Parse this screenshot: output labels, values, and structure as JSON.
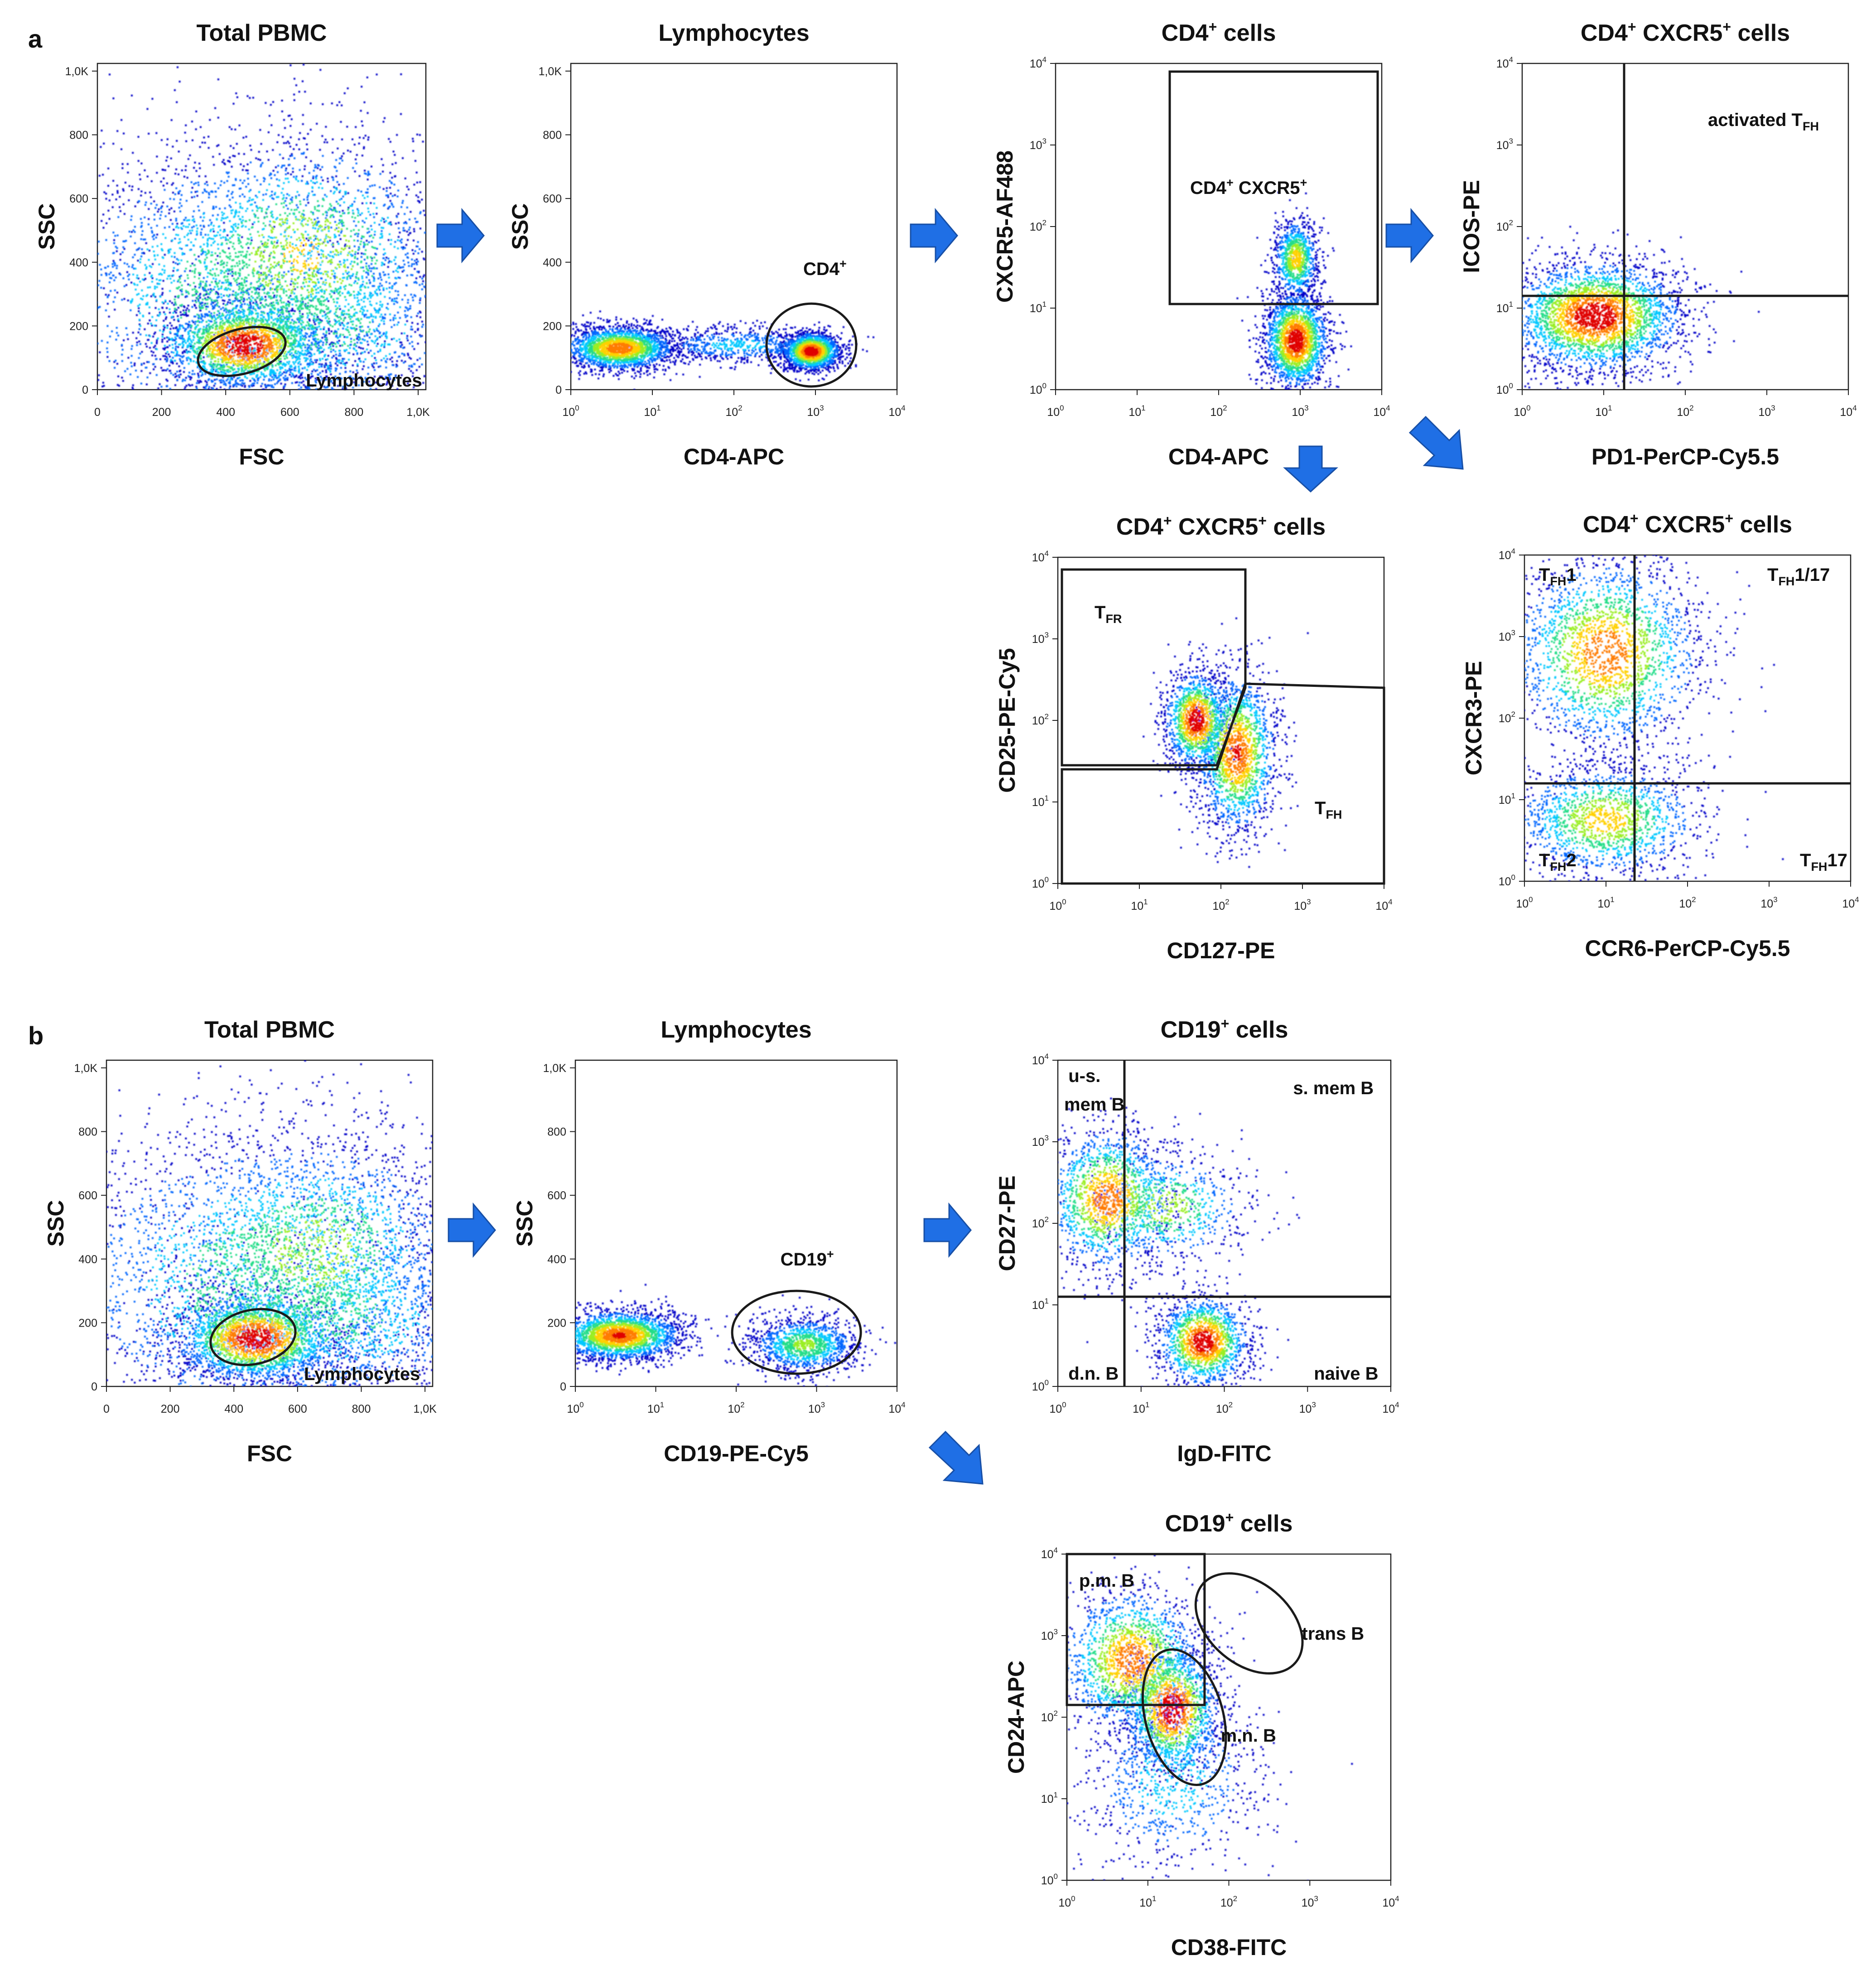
{
  "colors": {
    "arrow": "#1f6fe5",
    "gate": "#1a1a1a",
    "density_scale": [
      "#0000c8",
      "#0066ff",
      "#00c8ff",
      "#22dd88",
      "#99ee22",
      "#ffd000",
      "#ff7b00",
      "#e00000"
    ]
  },
  "panel_labels": {
    "a": "a",
    "b": "b"
  },
  "chart_data": [
    {
      "id": "a1",
      "type": "scatter",
      "title": "Total PBMC",
      "xlabel": "FSC",
      "ylabel": "SSC",
      "scale": "linear",
      "xlim": [
        0,
        1024
      ],
      "ylim": [
        0,
        1024
      ],
      "x_ticks": [
        "0",
        "200",
        "400",
        "600",
        "800",
        "1,0K"
      ],
      "y_ticks": [
        "0",
        "200",
        "400",
        "600",
        "800",
        "1,0K"
      ],
      "populations": [
        {
          "x": 470,
          "y": 300,
          "sx": 350,
          "sy": 260,
          "n": 2600,
          "w": 0.5
        },
        {
          "x": 640,
          "y": 420,
          "sx": 250,
          "sy": 200,
          "n": 1800,
          "w": 0.65
        },
        {
          "x": 460,
          "y": 140,
          "sx": 130,
          "sy": 70,
          "n": 2200,
          "w": 1.0
        },
        {
          "x": 700,
          "y": 200,
          "sx": 280,
          "sy": 150,
          "n": 1200,
          "w": 0.45
        }
      ],
      "gates": [
        {
          "type": "ellipse",
          "cx": 450,
          "cy": 120,
          "rx": 140,
          "ry": 70,
          "angle": 15,
          "label": "Lymphocytes",
          "label_at": [
            650,
            10
          ]
        }
      ]
    },
    {
      "id": "a2",
      "type": "scatter",
      "title": "Lymphocytes",
      "xlabel": "CD4-APC",
      "ylabel": "SSC",
      "scale": "log-x",
      "xlim": [
        0,
        4
      ],
      "ylim": [
        0,
        1024
      ],
      "x_ticks": [
        "10^0",
        "10^1",
        "10^2",
        "10^3",
        "10^4"
      ],
      "y_ticks": [
        "0",
        "200",
        "400",
        "600",
        "800",
        "1,0K"
      ],
      "populations": [
        {
          "x": 0.6,
          "y": 130,
          "sx": 0.35,
          "sy": 35,
          "n": 2200,
          "w": 0.85
        },
        {
          "x": 2.05,
          "y": 140,
          "sx": 0.6,
          "sy": 30,
          "n": 700,
          "w": 0.3
        },
        {
          "x": 2.95,
          "y": 120,
          "sx": 0.18,
          "sy": 30,
          "n": 1700,
          "w": 1.0
        }
      ],
      "gates": [
        {
          "type": "ellipse",
          "cx": 2.95,
          "cy": 140,
          "rx": 0.55,
          "ry": 130,
          "angle": 0,
          "label": "CD4+",
          "label_at": [
            2.85,
            360
          ]
        }
      ]
    },
    {
      "id": "a3",
      "type": "scatter",
      "title": "CD4+ cells",
      "xlabel": "CD4-APC",
      "ylabel": "CXCR5-AF488",
      "scale": "log",
      "xlim": [
        0,
        4
      ],
      "ylim": [
        0,
        4
      ],
      "x_ticks": [
        "10^0",
        "10^1",
        "10^2",
        "10^3",
        "10^4"
      ],
      "y_ticks": [
        "10^0",
        "10^1",
        "10^2",
        "10^3",
        "10^4"
      ],
      "populations": [
        {
          "x": 2.95,
          "y": 0.6,
          "sx": 0.2,
          "sy": 0.3,
          "n": 2000,
          "w": 1.0
        },
        {
          "x": 2.95,
          "y": 1.6,
          "sx": 0.14,
          "sy": 0.25,
          "n": 900,
          "w": 0.7
        }
      ],
      "gates": [
        {
          "type": "rect",
          "x0": 1.4,
          "x1": 3.95,
          "y0": 1.05,
          "y1": 3.9,
          "label": "CD4+ CXCR5+",
          "label_at": [
            1.65,
            2.4
          ]
        }
      ]
    },
    {
      "id": "a4",
      "type": "scatter",
      "title": "CD4+ CXCR5+ cells",
      "xlabel": "PD1-PerCP-Cy5.5",
      "ylabel": "ICOS-PE",
      "scale": "log",
      "xlim": [
        0,
        4
      ],
      "ylim": [
        0,
        4
      ],
      "x_ticks": [
        "10^0",
        "10^1",
        "10^2",
        "10^3",
        "10^4"
      ],
      "y_ticks": [
        "10^0",
        "10^1",
        "10^2",
        "10^3",
        "10^4"
      ],
      "populations": [
        {
          "x": 0.9,
          "y": 0.9,
          "sx": 0.55,
          "sy": 0.35,
          "n": 3000,
          "w": 1.0
        }
      ],
      "gates": [
        {
          "type": "quadrant",
          "x": 1.25,
          "y": 1.15
        }
      ],
      "quadrant_labels": [
        {
          "label": "activated TFH",
          "at": [
            2.2,
            3.2
          ]
        }
      ]
    },
    {
      "id": "a5",
      "type": "scatter",
      "title": "CD4+ CXCR5+ cells",
      "xlabel": "CD127-PE",
      "ylabel": "CD25-PE-Cy5",
      "scale": "log",
      "xlim": [
        0,
        4
      ],
      "ylim": [
        0,
        4
      ],
      "x_ticks": [
        "10^0",
        "10^1",
        "10^2",
        "10^3",
        "10^4"
      ],
      "y_ticks": [
        "10^0",
        "10^1",
        "10^2",
        "10^3",
        "10^4"
      ],
      "populations": [
        {
          "x": 1.7,
          "y": 2.0,
          "sx": 0.2,
          "sy": 0.3,
          "n": 1300,
          "w": 1.0
        },
        {
          "x": 2.2,
          "y": 1.6,
          "sx": 0.25,
          "sy": 0.5,
          "n": 1700,
          "w": 0.9
        }
      ],
      "gates": [
        {
          "type": "polygon",
          "points": [
            [
              0.05,
              1.45
            ],
            [
              1.95,
              1.45
            ],
            [
              2.3,
              2.4
            ],
            [
              2.3,
              3.85
            ],
            [
              0.05,
              3.85
            ]
          ],
          "label": "TFR",
          "label_at": [
            0.45,
            3.25
          ]
        },
        {
          "type": "polygon",
          "points": [
            [
              0.05,
              -0.1
            ],
            [
              0.05,
              1.4
            ],
            [
              1.95,
              1.4
            ],
            [
              2.3,
              2.45
            ],
            [
              4.0,
              2.4
            ],
            [
              4.0,
              -0.1
            ]
          ],
          "label": "TFH",
          "label_at": [
            3.15,
            0.85
          ]
        }
      ]
    },
    {
      "id": "a6",
      "type": "scatter",
      "title": "CD4+ CXCR5+ cells",
      "xlabel": "CCR6-PerCP-Cy5.5",
      "ylabel": "CXCR3-PE",
      "scale": "log",
      "xlim": [
        0,
        4
      ],
      "ylim": [
        0,
        4
      ],
      "x_ticks": [
        "10^0",
        "10^1",
        "10^2",
        "10^3",
        "10^4"
      ],
      "y_ticks": [
        "10^0",
        "10^1",
        "10^2",
        "10^3",
        "10^4"
      ],
      "populations": [
        {
          "x": 1.0,
          "y": 2.8,
          "sx": 0.6,
          "sy": 0.6,
          "n": 2200,
          "w": 0.85
        },
        {
          "x": 1.0,
          "y": 0.75,
          "sx": 0.6,
          "sy": 0.35,
          "n": 1500,
          "w": 0.7
        }
      ],
      "gates": [
        {
          "type": "quadrant",
          "x": 1.35,
          "y": 1.2
        }
      ],
      "quadrant_labels": [
        {
          "label": "TFH1",
          "at": [
            0.1,
            3.65
          ]
        },
        {
          "label": "TFH1/17",
          "at": [
            2.9,
            3.65
          ]
        },
        {
          "label": "TFH2",
          "at": [
            0.1,
            0.15
          ]
        },
        {
          "label": "TFH17",
          "at": [
            3.3,
            0.15
          ]
        }
      ]
    },
    {
      "id": "b1",
      "type": "scatter",
      "title": "Total PBMC",
      "xlabel": "FSC",
      "ylabel": "SSC",
      "scale": "linear",
      "xlim": [
        0,
        1024
      ],
      "ylim": [
        0,
        1024
      ],
      "x_ticks": [
        "0",
        "200",
        "400",
        "600",
        "800",
        "1,0K"
      ],
      "y_ticks": [
        "0",
        "200",
        "400",
        "600",
        "800",
        "1,0K"
      ],
      "populations": [
        {
          "x": 480,
          "y": 330,
          "sx": 340,
          "sy": 260,
          "n": 2600,
          "w": 0.5
        },
        {
          "x": 650,
          "y": 420,
          "sx": 250,
          "sy": 200,
          "n": 1800,
          "w": 0.6
        },
        {
          "x": 470,
          "y": 150,
          "sx": 130,
          "sy": 70,
          "n": 2200,
          "w": 1.0
        },
        {
          "x": 720,
          "y": 220,
          "sx": 280,
          "sy": 150,
          "n": 1200,
          "w": 0.45
        }
      ],
      "gates": [
        {
          "type": "ellipse",
          "cx": 460,
          "cy": 155,
          "rx": 135,
          "ry": 85,
          "angle": 12,
          "label": "Lymphocytes",
          "label_at": [
            620,
            20
          ]
        }
      ]
    },
    {
      "id": "b2",
      "type": "scatter",
      "title": "Lymphocytes",
      "xlabel": "CD19-PE-Cy5",
      "ylabel": "SSC",
      "scale": "log-x",
      "xlim": [
        0,
        4
      ],
      "ylim": [
        0,
        1024
      ],
      "x_ticks": [
        "10^0",
        "10^1",
        "10^2",
        "10^3",
        "10^4"
      ],
      "y_ticks": [
        "0",
        "200",
        "400",
        "600",
        "800",
        "1,0K"
      ],
      "populations": [
        {
          "x": 0.55,
          "y": 160,
          "sx": 0.4,
          "sy": 40,
          "n": 2400,
          "w": 0.9
        },
        {
          "x": 2.85,
          "y": 130,
          "sx": 0.35,
          "sy": 45,
          "n": 1200,
          "w": 0.55
        }
      ],
      "gates": [
        {
          "type": "ellipse",
          "cx": 2.75,
          "cy": 170,
          "rx": 0.8,
          "ry": 130,
          "angle": 0,
          "label": "CD19+",
          "label_at": [
            2.55,
            380
          ]
        }
      ]
    },
    {
      "id": "b3",
      "type": "scatter",
      "title": "CD19+ cells",
      "xlabel": "IgD-FITC",
      "ylabel": "CD27-PE",
      "scale": "log",
      "xlim": [
        0,
        4
      ],
      "ylim": [
        0,
        4
      ],
      "x_ticks": [
        "10^0",
        "10^1",
        "10^2",
        "10^3",
        "10^4"
      ],
      "y_ticks": [
        "10^0",
        "10^1",
        "10^2",
        "10^3",
        "10^4"
      ],
      "populations": [
        {
          "x": 0.6,
          "y": 2.3,
          "sx": 0.4,
          "sy": 0.45,
          "n": 1500,
          "w": 0.85
        },
        {
          "x": 1.3,
          "y": 2.2,
          "sx": 0.5,
          "sy": 0.35,
          "n": 700,
          "w": 0.6
        },
        {
          "x": 1.75,
          "y": 0.55,
          "sx": 0.28,
          "sy": 0.28,
          "n": 1500,
          "w": 1.0
        }
      ],
      "gates": [
        {
          "type": "quadrant",
          "x": 0.8,
          "y": 1.1
        }
      ],
      "quadrant_labels": [
        {
          "label": "u-s.",
          "at": [
            0.05,
            3.7
          ]
        },
        {
          "label": "mem B",
          "at": [
            -0.1,
            3.35
          ]
        },
        {
          "label": "s. mem B",
          "at": [
            2.75,
            3.55
          ]
        },
        {
          "label": "d.n. B",
          "at": [
            0.05,
            0.05
          ]
        },
        {
          "label": "naive B",
          "at": [
            3.0,
            0.05
          ]
        }
      ]
    },
    {
      "id": "b4",
      "type": "scatter",
      "title": "CD19+ cells",
      "xlabel": "CD38-FITC",
      "ylabel": "CD24-APC",
      "scale": "log",
      "xlim": [
        0,
        4
      ],
      "ylim": [
        0,
        4
      ],
      "x_ticks": [
        "10^0",
        "10^1",
        "10^2",
        "10^3",
        "10^4"
      ],
      "y_ticks": [
        "10^0",
        "10^1",
        "10^2",
        "10^3",
        "10^4"
      ],
      "populations": [
        {
          "x": 0.8,
          "y": 2.7,
          "sx": 0.45,
          "sy": 0.45,
          "n": 1700,
          "w": 0.85
        },
        {
          "x": 1.3,
          "y": 2.1,
          "sx": 0.3,
          "sy": 0.4,
          "n": 1500,
          "w": 1.0
        },
        {
          "x": 1.3,
          "y": 1.2,
          "sx": 0.6,
          "sy": 0.6,
          "n": 800,
          "w": 0.35
        }
      ],
      "gates": [
        {
          "type": "rect",
          "x0": -0.05,
          "x1": 1.7,
          "y0": 2.15,
          "y1": 4.0,
          "label": "p.m. B",
          "label_at": [
            0.15,
            3.6
          ]
        },
        {
          "type": "ellipse",
          "cx": 2.25,
          "cy": 3.15,
          "rx": 0.75,
          "ry": 0.5,
          "angle": -40,
          "label": "trans B",
          "label_at": [
            2.9,
            2.95
          ]
        },
        {
          "type": "ellipse",
          "cx": 1.45,
          "cy": 2.0,
          "rx": 0.48,
          "ry": 0.85,
          "angle": 15,
          "label": "m.n. B",
          "label_at": [
            1.9,
            1.7
          ]
        }
      ]
    }
  ]
}
